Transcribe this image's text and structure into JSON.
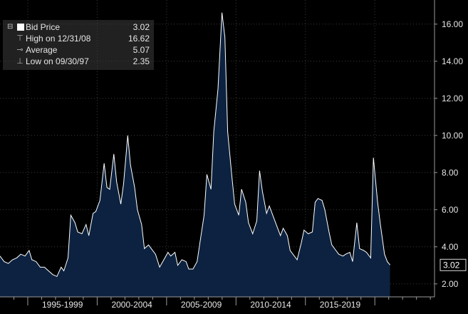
{
  "chart_data": {
    "type": "area",
    "title": "",
    "xlabel": "",
    "ylabel": "",
    "ylim": [
      1.3,
      17.3
    ],
    "xlim": [
      1993.0,
      2024.3
    ],
    "y_ticks": [
      "2.00",
      "4.00",
      "6.00",
      "8.00",
      "10.00",
      "12.00",
      "14.00",
      "16.00"
    ],
    "x_tick_labels": [
      "1995-1999",
      "2000-2004",
      "2005-2009",
      "2010-2014",
      "2015-2019"
    ],
    "grid": true,
    "legend_position": "top-left",
    "colors": {
      "background": "#000000",
      "fill": "#0c2240",
      "line": "#ffffff",
      "grid": "#3a3a3a",
      "text": "#e6e6e6"
    },
    "series": [
      {
        "name": "Bid Price",
        "points": [
          [
            1993.0,
            3.5
          ],
          [
            1993.3,
            3.2
          ],
          [
            1993.6,
            3.1
          ],
          [
            1993.9,
            3.3
          ],
          [
            1994.2,
            3.4
          ],
          [
            1994.5,
            3.6
          ],
          [
            1994.8,
            3.5
          ],
          [
            1995.1,
            3.8
          ],
          [
            1995.3,
            3.3
          ],
          [
            1995.6,
            3.2
          ],
          [
            1995.9,
            2.9
          ],
          [
            1996.2,
            2.9
          ],
          [
            1996.5,
            2.7
          ],
          [
            1996.8,
            2.5
          ],
          [
            1997.1,
            2.4
          ],
          [
            1997.4,
            2.9
          ],
          [
            1997.6,
            2.7
          ],
          [
            1997.9,
            3.4
          ],
          [
            1998.1,
            5.7
          ],
          [
            1998.4,
            5.3
          ],
          [
            1998.6,
            4.8
          ],
          [
            1998.9,
            4.7
          ],
          [
            1999.2,
            5.2
          ],
          [
            1999.4,
            4.6
          ],
          [
            1999.7,
            5.8
          ],
          [
            1999.9,
            5.9
          ],
          [
            2000.2,
            6.5
          ],
          [
            2000.5,
            8.5
          ],
          [
            2000.7,
            7.2
          ],
          [
            2000.9,
            7.1
          ],
          [
            2001.2,
            9.0
          ],
          [
            2001.4,
            7.5
          ],
          [
            2001.7,
            6.3
          ],
          [
            2001.9,
            7.4
          ],
          [
            2002.2,
            10.0
          ],
          [
            2002.4,
            8.4
          ],
          [
            2002.7,
            7.2
          ],
          [
            2002.9,
            6.0
          ],
          [
            2003.2,
            5.2
          ],
          [
            2003.4,
            3.9
          ],
          [
            2003.7,
            4.1
          ],
          [
            2003.9,
            3.9
          ],
          [
            2004.2,
            3.6
          ],
          [
            2004.5,
            2.9
          ],
          [
            2004.8,
            3.3
          ],
          [
            2005.1,
            3.7
          ],
          [
            2005.3,
            3.5
          ],
          [
            2005.6,
            3.7
          ],
          [
            2005.8,
            3.0
          ],
          [
            2006.1,
            3.3
          ],
          [
            2006.4,
            3.2
          ],
          [
            2006.6,
            2.8
          ],
          [
            2006.9,
            2.8
          ],
          [
            2007.2,
            3.2
          ],
          [
            2007.4,
            4.2
          ],
          [
            2007.7,
            5.7
          ],
          [
            2007.9,
            7.9
          ],
          [
            2008.2,
            7.1
          ],
          [
            2008.4,
            10.2
          ],
          [
            2008.7,
            12.5
          ],
          [
            2008.99,
            16.62
          ],
          [
            2009.2,
            15.3
          ],
          [
            2009.4,
            10.2
          ],
          [
            2009.7,
            7.8
          ],
          [
            2009.9,
            6.3
          ],
          [
            2010.2,
            5.7
          ],
          [
            2010.4,
            7.1
          ],
          [
            2010.7,
            6.4
          ],
          [
            2010.9,
            5.3
          ],
          [
            2011.2,
            4.7
          ],
          [
            2011.5,
            5.4
          ],
          [
            2011.7,
            8.1
          ],
          [
            2011.9,
            7.0
          ],
          [
            2012.2,
            5.8
          ],
          [
            2012.4,
            6.2
          ],
          [
            2012.7,
            5.6
          ],
          [
            2012.9,
            5.2
          ],
          [
            2013.2,
            4.6
          ],
          [
            2013.4,
            5.0
          ],
          [
            2013.7,
            4.6
          ],
          [
            2013.9,
            3.8
          ],
          [
            2014.2,
            3.5
          ],
          [
            2014.4,
            3.3
          ],
          [
            2014.7,
            4.2
          ],
          [
            2014.9,
            4.9
          ],
          [
            2015.2,
            4.7
          ],
          [
            2015.5,
            4.8
          ],
          [
            2015.7,
            6.4
          ],
          [
            2015.9,
            6.6
          ],
          [
            2016.2,
            6.5
          ],
          [
            2016.4,
            6.0
          ],
          [
            2016.7,
            4.8
          ],
          [
            2016.9,
            4.1
          ],
          [
            2017.2,
            3.8
          ],
          [
            2017.4,
            3.6
          ],
          [
            2017.7,
            3.5
          ],
          [
            2017.9,
            3.6
          ],
          [
            2018.2,
            3.7
          ],
          [
            2018.4,
            3.2
          ],
          [
            2018.7,
            5.3
          ],
          [
            2018.9,
            3.9
          ],
          [
            2019.2,
            3.8
          ],
          [
            2019.4,
            3.7
          ],
          [
            2019.7,
            3.4
          ],
          [
            2019.9,
            8.8
          ],
          [
            2020.2,
            6.4
          ],
          [
            2020.4,
            5.2
          ],
          [
            2020.7,
            3.6
          ],
          [
            2020.9,
            3.2
          ],
          [
            2021.1,
            3.02
          ]
        ]
      }
    ],
    "last_value": "3.02"
  },
  "legend": {
    "items": [
      {
        "label": "Bid Price",
        "value": "3.02",
        "icon": "square-swatch"
      },
      {
        "label": "High on 12/31/08",
        "value": "16.62",
        "icon": "high-marker"
      },
      {
        "label": "Average",
        "value": "5.07",
        "icon": "average-marker"
      },
      {
        "label": "Low on 09/30/97",
        "value": "2.35",
        "icon": "low-marker"
      }
    ]
  }
}
